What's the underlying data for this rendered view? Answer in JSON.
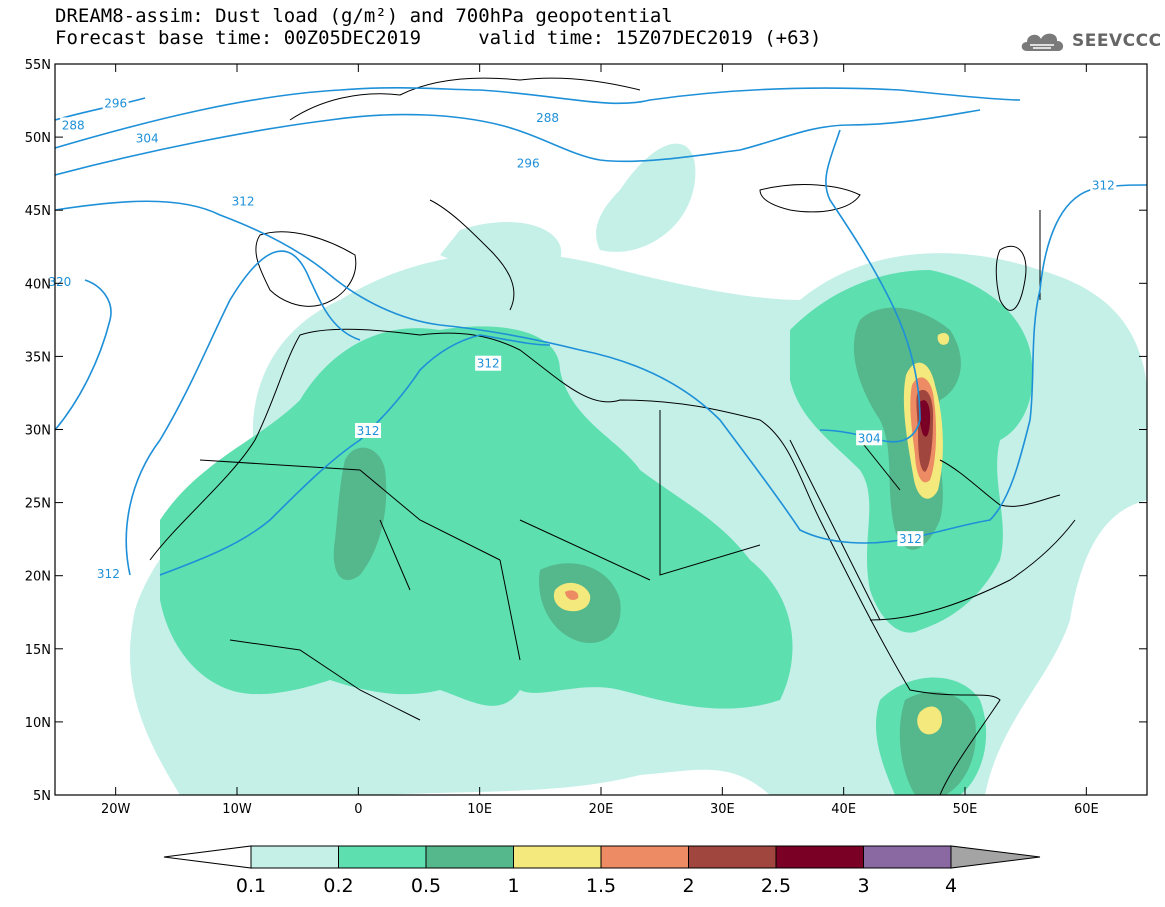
{
  "title": {
    "line1": "DREAM8-assim: Dust load (g/m²) and 700hPa geopotential",
    "line2": "Forecast base time: 00Z05DEC2019     valid time: 15Z07DEC2019 (+63)"
  },
  "logo": {
    "text": "SEEVCCC",
    "icon": "cloud-icon"
  },
  "map": {
    "lon_range": [
      -25,
      65
    ],
    "lat_range": [
      5,
      55
    ],
    "x_ticks": [
      {
        "lon": -20,
        "label": "20W"
      },
      {
        "lon": -10,
        "label": "10W"
      },
      {
        "lon": 0,
        "label": "0"
      },
      {
        "lon": 10,
        "label": "10E"
      },
      {
        "lon": 20,
        "label": "20E"
      },
      {
        "lon": 30,
        "label": "30E"
      },
      {
        "lon": 40,
        "label": "40E"
      },
      {
        "lon": 50,
        "label": "50E"
      },
      {
        "lon": 60,
        "label": "60E"
      }
    ],
    "y_ticks": [
      {
        "lat": 55,
        "label": "55N"
      },
      {
        "lat": 50,
        "label": "50N"
      },
      {
        "lat": 45,
        "label": "45N"
      },
      {
        "lat": 40,
        "label": "40N"
      },
      {
        "lat": 35,
        "label": "35N"
      },
      {
        "lat": 30,
        "label": "30N"
      },
      {
        "lat": 25,
        "label": "25N"
      },
      {
        "lat": 20,
        "label": "20N"
      },
      {
        "lat": 15,
        "label": "15N"
      },
      {
        "lat": 10,
        "label": "10N"
      },
      {
        "lat": 5,
        "label": "5N"
      }
    ],
    "contour_labels": [
      {
        "text": "296",
        "lon": -20,
        "lat": 52.3
      },
      {
        "text": "288",
        "lon": -23.5,
        "lat": 50.8
      },
      {
        "text": "304",
        "lon": -17.4,
        "lat": 49.9
      },
      {
        "text": "312",
        "lon": -9.5,
        "lat": 45.6
      },
      {
        "text": "320",
        "lon": -24.6,
        "lat": 40.1
      },
      {
        "text": "288",
        "lon": 15.6,
        "lat": 51.3
      },
      {
        "text": "296",
        "lon": 14.0,
        "lat": 48.2
      },
      {
        "text": "312",
        "lon": 10.7,
        "lat": 34.5
      },
      {
        "text": "312",
        "lon": 0.8,
        "lat": 29.9
      },
      {
        "text": "304",
        "lon": 42.1,
        "lat": 29.4
      },
      {
        "text": "312",
        "lon": 45.5,
        "lat": 22.5
      },
      {
        "text": "312",
        "lon": -20.6,
        "lat": 20.1
      },
      {
        "text": "312",
        "lon": 61.4,
        "lat": 46.7
      }
    ]
  },
  "colorbar": {
    "labels": [
      "0.1",
      "0.2",
      "0.5",
      "1",
      "1.5",
      "2",
      "2.5",
      "3",
      "4"
    ],
    "colors": [
      "#c4f0e8",
      "#5ddfb0",
      "#55b78c",
      "#f4e97c",
      "#ec8b64",
      "#a0463e",
      "#7a0025",
      "#8a68a2"
    ],
    "under_color": "#ffffff",
    "over_color": "#a4a4a4"
  }
}
